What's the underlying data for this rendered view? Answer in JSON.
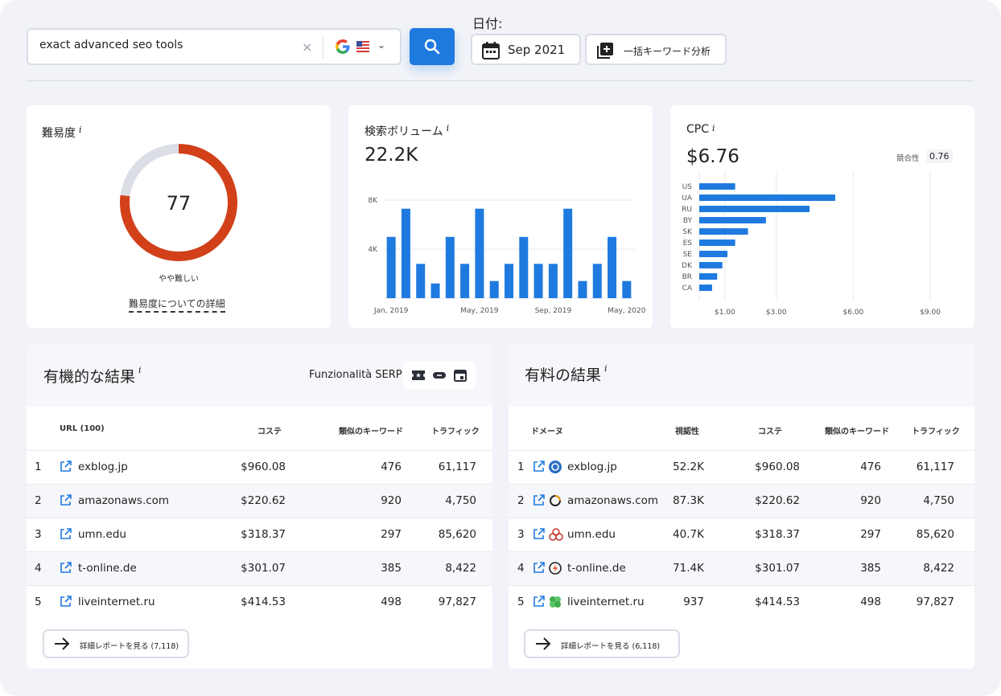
{
  "search": {
    "query": "exact advanced seo tools",
    "clear": "×"
  },
  "date": {
    "label": "日付:",
    "value": "Sep 2021"
  },
  "bulk": {
    "label": "一括キーワード分析"
  },
  "difficulty": {
    "title": "難易度",
    "info": "i",
    "value": 77,
    "value_text": "77",
    "level": "やや難しい",
    "link": "難易度についての詳細",
    "color_fill": "#d2401a",
    "color_track": "#dcdee6"
  },
  "volume": {
    "title": "検索ボリューム",
    "info": "i",
    "value": "22.2K",
    "chart_data": {
      "type": "bar",
      "values": [
        5000,
        7300,
        2800,
        1200,
        5000,
        2800,
        7300,
        1400,
        2800,
        5000,
        2800,
        2800,
        7300,
        1400,
        2800,
        5000,
        1400
      ],
      "y_ticks": [
        "8K",
        "4K"
      ],
      "x_tick_labels": [
        "Jan, 2019",
        "May, 2019",
        "Sep, 2019",
        "May, 2020"
      ],
      "ylim": [
        0,
        8000
      ],
      "color": "#1f7ae0"
    }
  },
  "cpc": {
    "title": "CPC",
    "info": "i",
    "value": "$6.76",
    "competition_label": "競合性",
    "competition_value": "0.76",
    "chart_data": {
      "type": "bar",
      "orientation": "horizontal",
      "categories": [
        "US",
        "UA",
        "RU",
        "BY",
        "SK",
        "ES",
        "SE",
        "DK",
        "BR",
        "CA"
      ],
      "values": [
        1.4,
        5.3,
        4.3,
        2.6,
        1.9,
        1.4,
        1.1,
        0.9,
        0.7,
        0.5
      ],
      "x_ticks": [
        1,
        3,
        6,
        9
      ],
      "x_tick_labels": [
        "$1.00",
        "$3.00",
        "$6.00",
        "$9.00"
      ],
      "xlim": [
        0,
        10
      ],
      "color": "#1f7ae0"
    }
  },
  "organic": {
    "title": "有機的な結果",
    "info": "i",
    "serp_label": "Funzionalità SERP:",
    "headers": {
      "url": "URL (100)",
      "cost": "コステ",
      "similar": "類似のキーワード",
      "traffic": "トラフィック"
    },
    "rows": [
      {
        "n": "1",
        "domain": "exblog.jp",
        "cost": "$960.08",
        "similar": "476",
        "traffic": "61,117"
      },
      {
        "n": "2",
        "domain": "amazonaws.com",
        "cost": "$220.62",
        "similar": "920",
        "traffic": "4,750"
      },
      {
        "n": "3",
        "domain": "umn.edu",
        "cost": "$318.37",
        "similar": "297",
        "traffic": "85,620"
      },
      {
        "n": "4",
        "domain": "t-online.de",
        "cost": "$301.07",
        "similar": "385",
        "traffic": "8,422"
      },
      {
        "n": "5",
        "domain": "liveinternet.ru",
        "cost": "$414.53",
        "similar": "498",
        "traffic": "97,827"
      }
    ],
    "report": "詳細レポートを見る (7,118)"
  },
  "paid": {
    "title": "有料の結果",
    "info": "i",
    "headers": {
      "domain": "ドメーヌ",
      "visibility": "視認性",
      "cost": "コステ",
      "similar": "類似のキーワード",
      "traffic": "トラフィック"
    },
    "rows": [
      {
        "n": "1",
        "domain": "exblog.jp",
        "visibility": "52.2K",
        "cost": "$960.08",
        "similar": "476",
        "traffic": "61,117"
      },
      {
        "n": "2",
        "domain": "amazonaws.com",
        "visibility": "87.3K",
        "cost": "$220.62",
        "similar": "920",
        "traffic": "4,750"
      },
      {
        "n": "3",
        "domain": "umn.edu",
        "visibility": "40.7K",
        "cost": "$318.37",
        "similar": "297",
        "traffic": "85,620"
      },
      {
        "n": "4",
        "domain": "t-online.de",
        "visibility": "71.4K",
        "cost": "$301.07",
        "similar": "385",
        "traffic": "8,422"
      },
      {
        "n": "5",
        "domain": "liveinternet.ru",
        "visibility": "937",
        "cost": "$414.53",
        "similar": "498",
        "traffic": "97,827"
      }
    ],
    "report": "詳細レポートを見る (6,118)"
  },
  "icons": {
    "search": "search-icon",
    "calendar": "calendar-icon",
    "bulk": "add-list-icon",
    "google": "google-icon",
    "flag": "us-flag-icon",
    "external": "external-link-icon",
    "arrow": "arrow-right-icon",
    "serp": [
      "ticket-icon",
      "link-icon",
      "calendar-event-icon"
    ]
  }
}
